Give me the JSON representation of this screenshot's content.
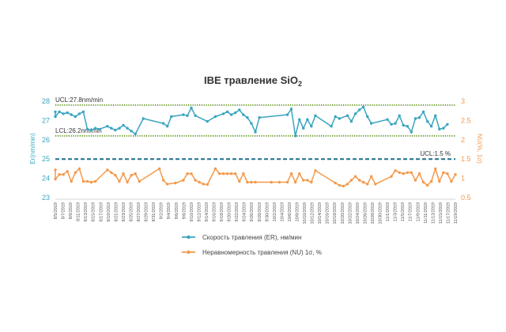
{
  "chart_data": {
    "type": "line",
    "title_main": "IBE травление SiO",
    "title_sub": "2",
    "y_left": {
      "label": "Er(nm/min)",
      "range": [
        23,
        28
      ],
      "ticks": [
        "23",
        "24",
        "25",
        "26",
        "27",
        "28"
      ],
      "color": "#3aa5c0"
    },
    "y_right": {
      "label": "NU(%, 1σ)",
      "range": [
        0.5,
        3
      ],
      "ticks": [
        "0.5",
        "1",
        "1.5",
        "2",
        "2.5",
        "3"
      ],
      "color": "#f39a4c"
    },
    "x_labels": [
      "8/5/2019",
      "8/7/2019",
      "8/9/2019",
      "8/11/2019",
      "8/13/2019",
      "8/15/2019",
      "8/17/2019",
      "8/19/2019",
      "8/21/2019",
      "8/23/2019",
      "8/25/2019",
      "8/27/2019",
      "8/29/2019",
      "8/31/2019",
      "9/2/2019",
      "9/4/2019",
      "9/6/2019",
      "9/8/2019",
      "9/10/2019",
      "9/12/2019",
      "9/14/2019",
      "9/16/2019",
      "9/18/2019",
      "9/20/2019",
      "9/22/2019",
      "9/24/2019",
      "9/26/2019",
      "9/28/2019",
      "9/30/2019",
      "10/2/2019",
      "10/4/2019",
      "10/6/2019",
      "10/8/2019",
      "10/10/2019",
      "10/12/2019",
      "10/14/2019",
      "10/16/2019",
      "10/18/2019",
      "10/20/2019",
      "10/22/2019",
      "10/24/2019",
      "10/26/2019",
      "10/28/2019",
      "10/30/2019",
      "11/1/2019",
      "11/3/2019",
      "11/5/2019",
      "11/7/2019",
      "11/9/2019",
      "11/11/2019",
      "11/13/2019",
      "11/15/2019",
      "11/17/2019",
      "11/19/2019"
    ],
    "limits": [
      {
        "label": "UCL:27.8nm/min",
        "axis": "left",
        "value": 27.8,
        "color": "#6a9a2a",
        "style": "dotted"
      },
      {
        "label": "LCL:26.2nm/min",
        "axis": "left",
        "value": 26.2,
        "color": "#6a9a2a",
        "style": "dotted"
      },
      {
        "label": "UCL:1.5 %",
        "axis": "right",
        "value": 1.5,
        "color": "#1d6f8c",
        "style": "dashed"
      }
    ],
    "series": [
      {
        "name": "Скорость травления (ER), нм/мин",
        "axis": "left",
        "color": "#3aa5c0",
        "points": [
          [
            0,
            27.45
          ],
          [
            0,
            27.2
          ],
          [
            1,
            27.45
          ],
          [
            2,
            27.35
          ],
          [
            3,
            27.4
          ],
          [
            4,
            27.3
          ],
          [
            5,
            27.2
          ],
          [
            6,
            27.35
          ],
          [
            7,
            27.45
          ],
          [
            8,
            26.55
          ],
          [
            9,
            26.5
          ],
          [
            10,
            26.6
          ],
          [
            11,
            26.55
          ],
          [
            13,
            26.7
          ],
          [
            14,
            26.6
          ],
          [
            15,
            26.5
          ],
          [
            16,
            26.6
          ],
          [
            17,
            26.75
          ],
          [
            18,
            26.6
          ],
          [
            19,
            26.45
          ],
          [
            20,
            26.3
          ],
          [
            22,
            27.1
          ],
          [
            27,
            26.85
          ],
          [
            28,
            26.7
          ],
          [
            29,
            27.2
          ],
          [
            32,
            27.3
          ],
          [
            33,
            27.25
          ],
          [
            34,
            27.65
          ],
          [
            35,
            27.25
          ],
          [
            38,
            26.95
          ],
          [
            40,
            27.2
          ],
          [
            42,
            27.35
          ],
          [
            43,
            27.45
          ],
          [
            44,
            27.3
          ],
          [
            45,
            27.4
          ],
          [
            46,
            27.55
          ],
          [
            47,
            27.3
          ],
          [
            48,
            27.15
          ],
          [
            49,
            26.85
          ],
          [
            50,
            26.4
          ],
          [
            51,
            27.15
          ],
          [
            58,
            27.3
          ],
          [
            59,
            27.6
          ],
          [
            60,
            26.2
          ],
          [
            61,
            27.05
          ],
          [
            62,
            26.6
          ],
          [
            63,
            27.05
          ],
          [
            64,
            26.7
          ],
          [
            65,
            27.25
          ],
          [
            69,
            26.7
          ],
          [
            70,
            27.2
          ],
          [
            71,
            27.1
          ],
          [
            73,
            27.25
          ],
          [
            74,
            26.95
          ],
          [
            75,
            27.35
          ],
          [
            76,
            27.55
          ],
          [
            77,
            27.7
          ],
          [
            78,
            27.2
          ],
          [
            79,
            26.85
          ],
          [
            83,
            27.05
          ],
          [
            84,
            26.8
          ],
          [
            85,
            26.85
          ],
          [
            86,
            27.25
          ],
          [
            87,
            26.75
          ],
          [
            88,
            26.7
          ],
          [
            89,
            26.4
          ],
          [
            90,
            27.1
          ],
          [
            91,
            27.15
          ],
          [
            92,
            27.45
          ],
          [
            93,
            26.95
          ],
          [
            94,
            26.7
          ],
          [
            95,
            27.25
          ],
          [
            96,
            26.55
          ],
          [
            97,
            26.6
          ],
          [
            98,
            26.8
          ]
        ]
      },
      {
        "name": "Неравномерность травления (NU) 1σ, %",
        "axis": "right",
        "color": "#f39a4c",
        "points": [
          [
            0,
            1.22
          ],
          [
            0,
            0.98
          ],
          [
            1,
            1.1
          ],
          [
            2,
            1.1
          ],
          [
            3,
            1.18
          ],
          [
            4,
            0.92
          ],
          [
            5,
            1.15
          ],
          [
            6,
            1.25
          ],
          [
            7,
            0.92
          ],
          [
            8,
            0.92
          ],
          [
            9,
            0.9
          ],
          [
            10,
            0.92
          ],
          [
            13,
            1.22
          ],
          [
            14,
            1.15
          ],
          [
            15,
            1.08
          ],
          [
            16,
            0.92
          ],
          [
            17,
            1.12
          ],
          [
            18,
            0.9
          ],
          [
            19,
            1.08
          ],
          [
            20,
            1.12
          ],
          [
            21,
            0.92
          ],
          [
            26,
            1.25
          ],
          [
            27,
            0.95
          ],
          [
            28,
            0.85
          ],
          [
            30,
            0.88
          ],
          [
            32,
            0.95
          ],
          [
            33,
            1.12
          ],
          [
            34,
            1.12
          ],
          [
            35,
            0.95
          ],
          [
            36,
            0.9
          ],
          [
            37,
            0.85
          ],
          [
            38,
            0.84
          ],
          [
            40,
            1.25
          ],
          [
            41,
            1.12
          ],
          [
            42,
            1.12
          ],
          [
            43,
            1.12
          ],
          [
            44,
            1.12
          ],
          [
            45,
            1.12
          ],
          [
            46,
            0.92
          ],
          [
            47,
            1.12
          ],
          [
            48,
            0.9
          ],
          [
            49,
            0.9
          ],
          [
            50,
            0.9
          ],
          [
            54,
            0.9
          ],
          [
            56,
            0.9
          ],
          [
            58,
            0.9
          ],
          [
            59,
            1.12
          ],
          [
            60,
            0.9
          ],
          [
            61,
            1.12
          ],
          [
            62,
            0.95
          ],
          [
            63,
            0.95
          ],
          [
            64,
            0.9
          ],
          [
            65,
            1.2
          ],
          [
            70,
            0.88
          ],
          [
            71,
            0.82
          ],
          [
            72,
            0.8
          ],
          [
            73,
            0.85
          ],
          [
            74,
            0.95
          ],
          [
            75,
            1.05
          ],
          [
            76,
            0.95
          ],
          [
            77,
            0.9
          ],
          [
            78,
            0.85
          ],
          [
            79,
            1.05
          ],
          [
            80,
            0.85
          ],
          [
            84,
            1.05
          ],
          [
            85,
            1.2
          ],
          [
            86,
            1.15
          ],
          [
            87,
            1.12
          ],
          [
            88,
            1.15
          ],
          [
            89,
            1.15
          ],
          [
            90,
            0.95
          ],
          [
            91,
            1.12
          ],
          [
            92,
            0.9
          ],
          [
            93,
            0.82
          ],
          [
            94,
            0.92
          ],
          [
            95,
            1.25
          ],
          [
            96,
            0.92
          ],
          [
            97,
            1.15
          ],
          [
            98,
            1.12
          ],
          [
            99,
            0.92
          ],
          [
            100,
            1.1
          ]
        ]
      }
    ],
    "x_index_max": 100,
    "legend_placement": "bottom-center",
    "grid": false
  }
}
